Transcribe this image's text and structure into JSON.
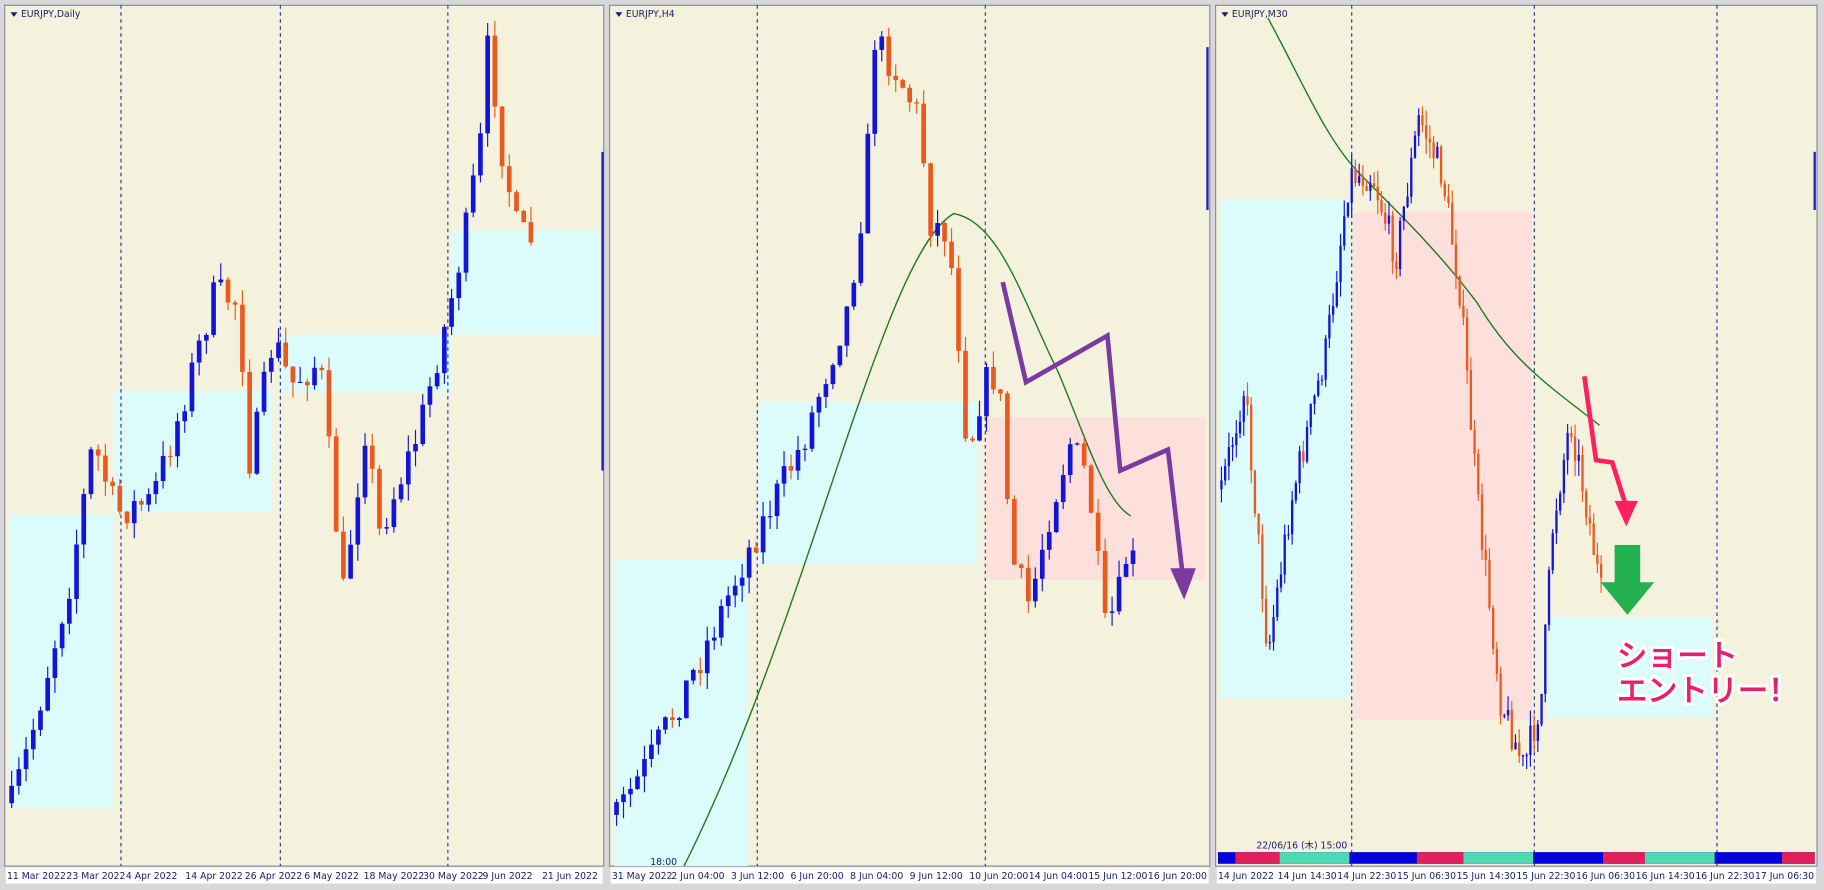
{
  "panels": [
    {
      "title": "EURJPY,Daily",
      "x_labels": [
        "11 Mar 2022",
        "23 Mar 2022",
        "4 Apr 2022",
        "14 Apr 2022",
        "26 Apr 2022",
        "6 May 2022",
        "18 May 2022",
        "30 May 2022",
        "9 Jun 2022",
        "21 Jun 2022"
      ]
    },
    {
      "title": "EURJPY,H4",
      "x_labels": [
        "31 May 2022",
        "2 Jun 04:00",
        "3 Jun 12:00",
        "6 Jun 20:00",
        "8 Jun 04:00",
        "9 Jun 12:00",
        "10 Jun 20:00",
        "14 Jun 04:00",
        "15 Jun 12:00",
        "16 Jun 20:00"
      ],
      "time_label": "18:00"
    },
    {
      "title": "EURJPY,M30",
      "x_labels": [
        "14 Jun 2022",
        "14 Jun 14:30",
        "14 Jun 22:30",
        "15 Jun 06:30",
        "15 Jun 14:30",
        "15 Jun 22:30",
        "16 Jun 06:30",
        "16 Jun 14:30",
        "16 Jun 22:30",
        "17 Jun 06:30"
      ],
      "time_label": "22/06/16 (木) 15:00",
      "annotation": [
        "ショート",
        "エントリー！"
      ]
    }
  ]
}
